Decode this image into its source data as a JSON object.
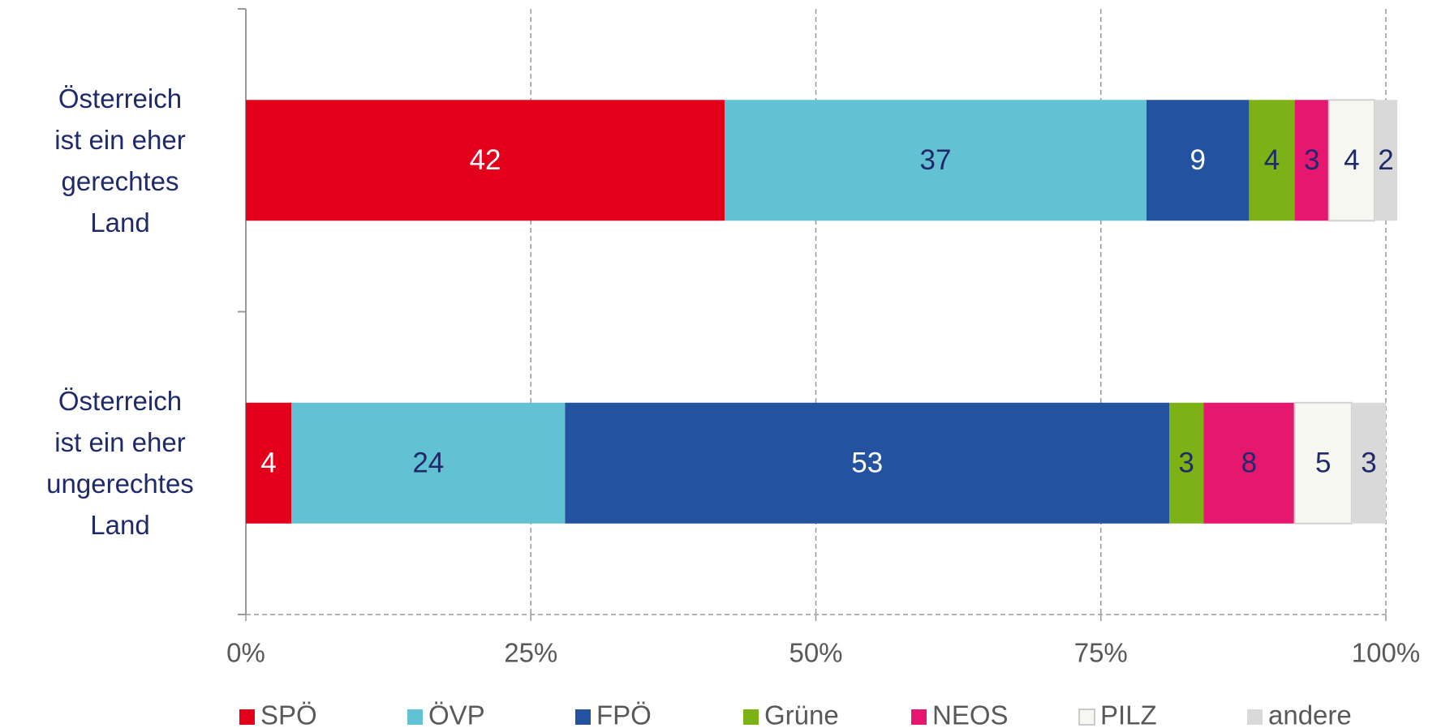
{
  "chart_data": {
    "type": "bar",
    "orientation": "horizontal",
    "stacked": true,
    "categories": [
      "Österreich ist ein eher gerechtes Land",
      "Österreich ist ein eher ungerechtes Land"
    ],
    "series": [
      {
        "name": "SPÖ",
        "color": "#e2001a",
        "label_color": "#ffffff",
        "values": [
          42,
          4
        ]
      },
      {
        "name": "ÖVP",
        "color": "#62c1d3",
        "label_color": "#1f2a6b",
        "values": [
          37,
          24
        ]
      },
      {
        "name": "FPÖ",
        "color": "#2352a0",
        "label_color": "#ffffff",
        "values": [
          9,
          53
        ]
      },
      {
        "name": "Grüne",
        "color": "#7cb215",
        "label_color": "#1f2a6b",
        "values": [
          4,
          3
        ]
      },
      {
        "name": "NEOS",
        "color": "#e5176f",
        "label_color": "#1f2a6b",
        "values": [
          3,
          8
        ]
      },
      {
        "name": "PILZ",
        "color": "#f7f7f2",
        "label_color": "#1f2a6b",
        "values": [
          4,
          5
        ]
      },
      {
        "name": "andere",
        "color": "#d9d9d9",
        "label_color": "#1f2a6b",
        "values": [
          2,
          3
        ]
      }
    ],
    "xlim": [
      0,
      100
    ],
    "xticks": [
      {
        "value": 0,
        "label": "0%"
      },
      {
        "value": 25,
        "label": "25%"
      },
      {
        "value": 50,
        "label": "50%"
      },
      {
        "value": 75,
        "label": "75%"
      },
      {
        "value": 100,
        "label": "100%"
      }
    ],
    "grid": true,
    "legend": "bottom"
  }
}
